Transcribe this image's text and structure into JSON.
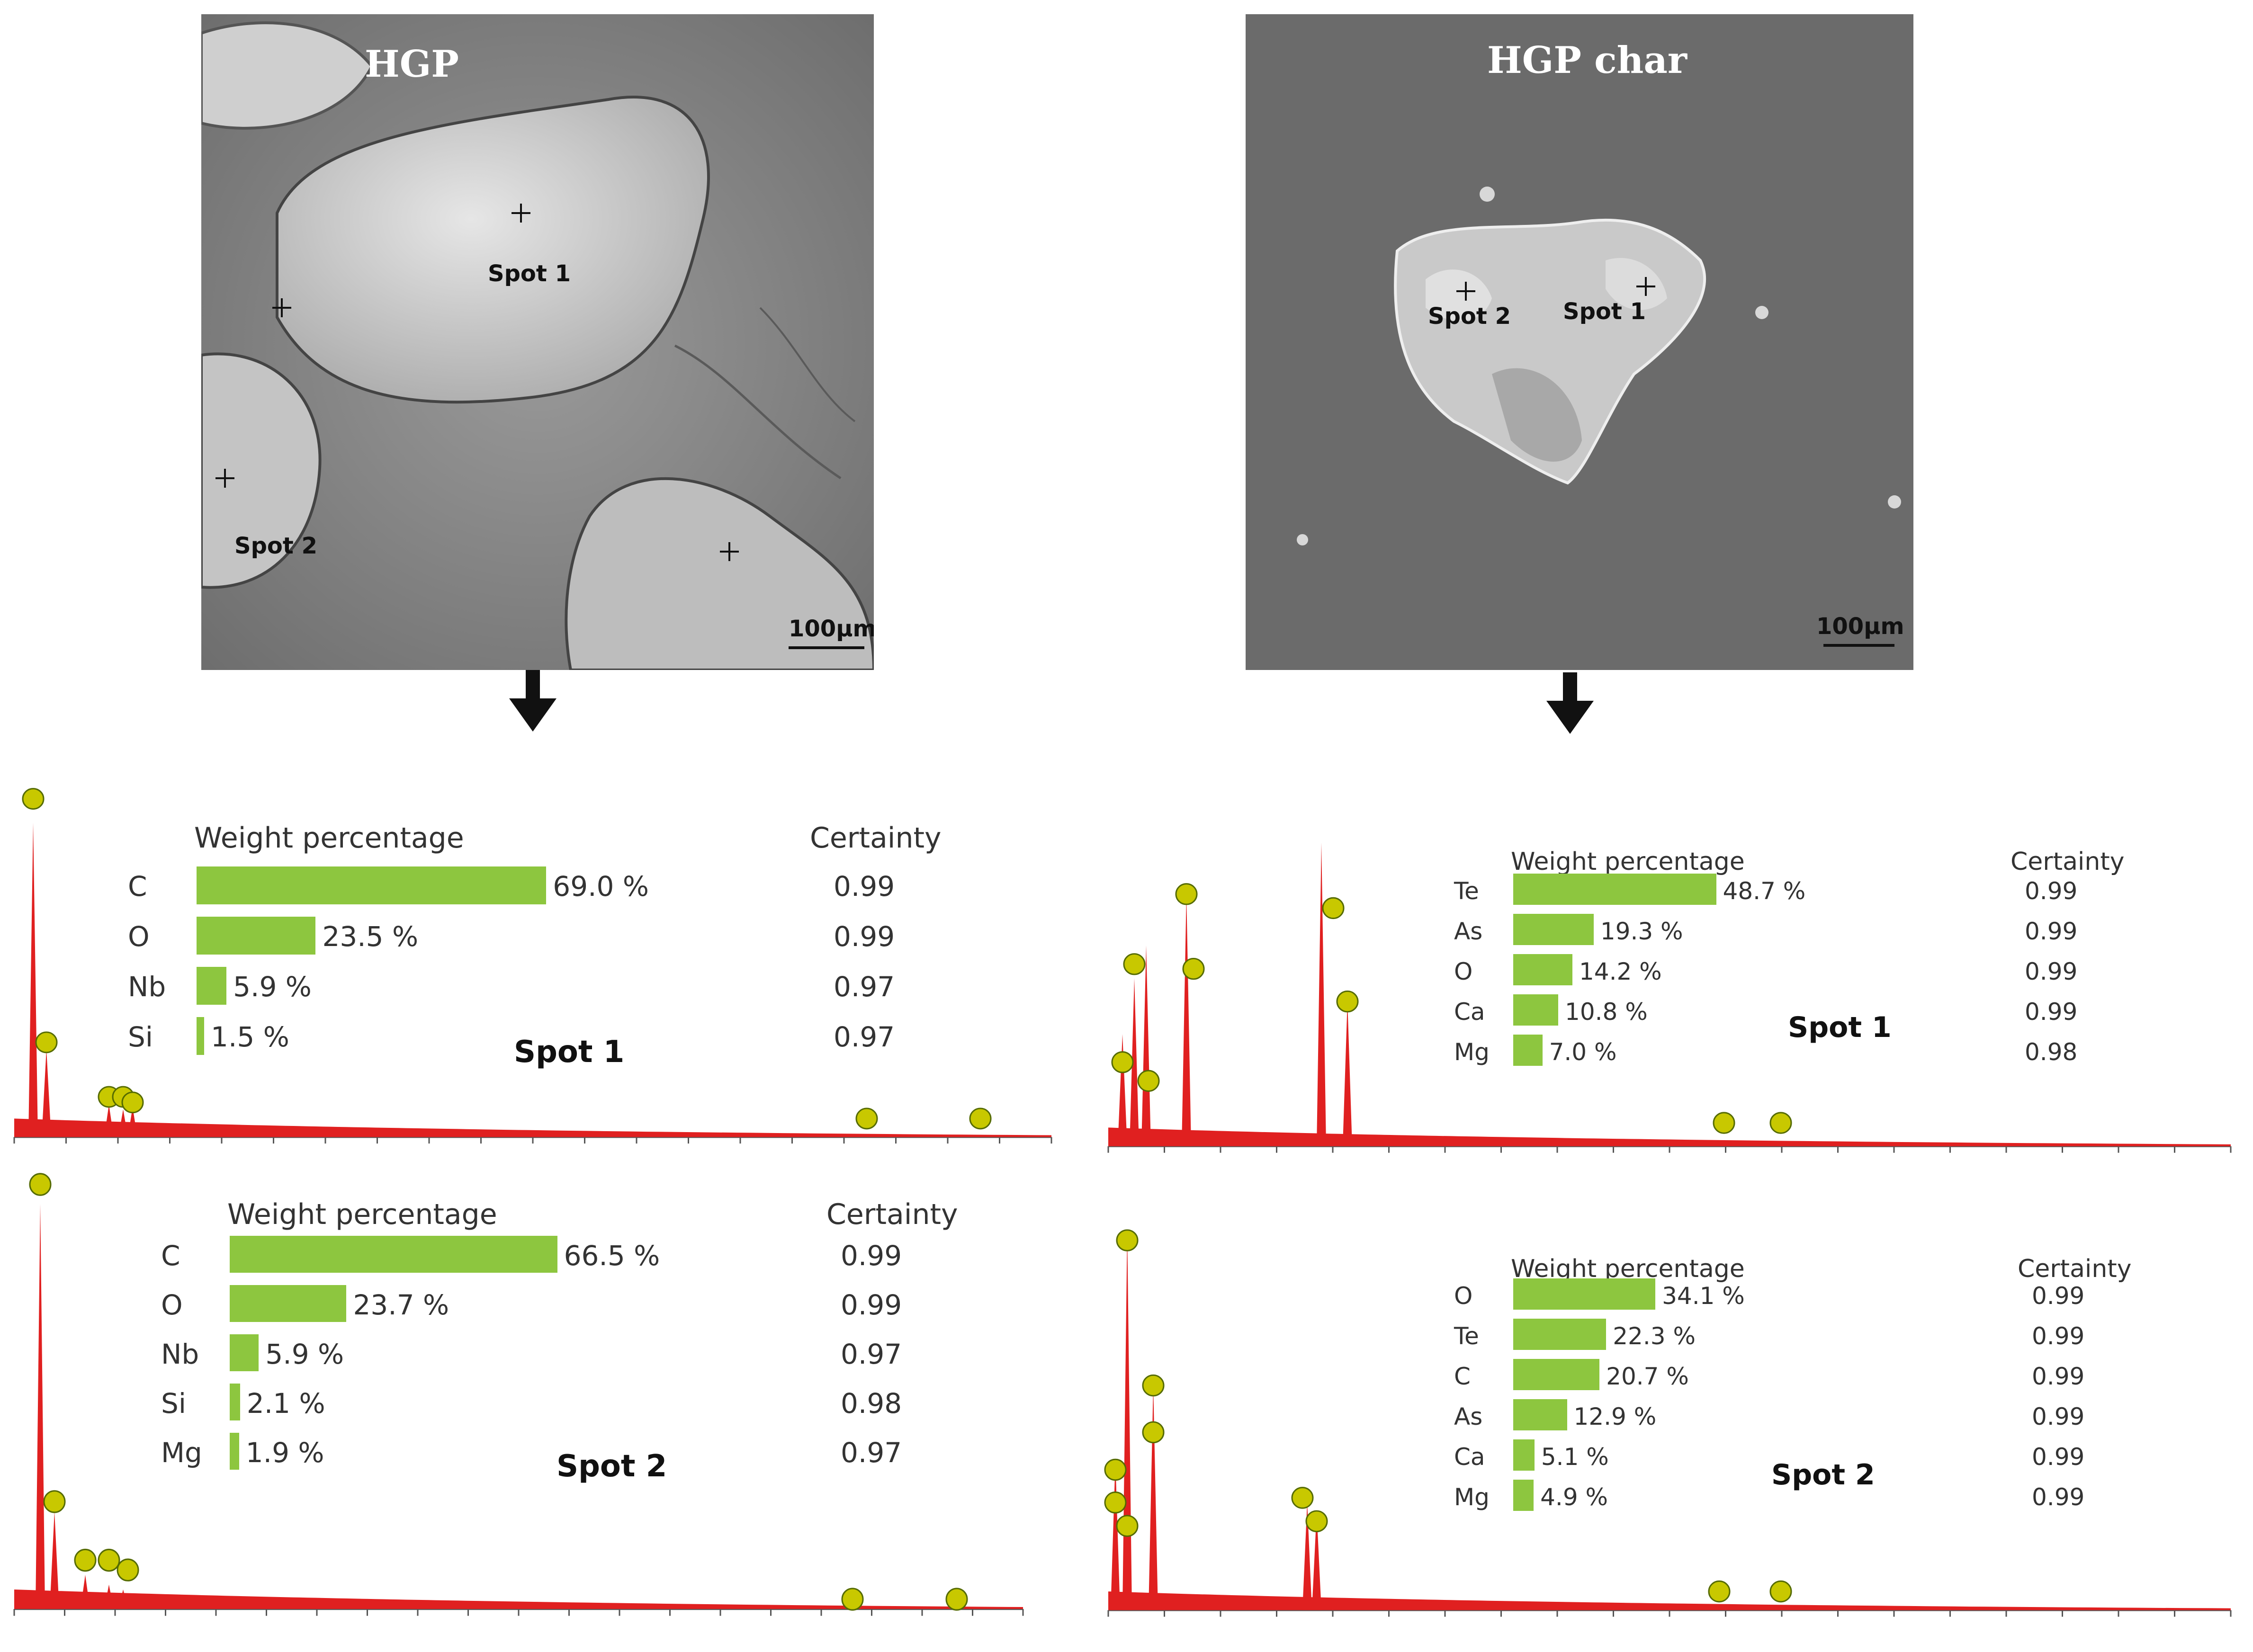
{
  "sem_images": [
    {
      "title": "HGP",
      "labels": [
        "Spot 1",
        "Spot 2"
      ],
      "scalebar": "100μm"
    },
    {
      "title": "HGP char",
      "labels": [
        "Spot 2",
        "Spot 1"
      ],
      "scalebar": "100μm"
    }
  ],
  "colors": {
    "bar": "#8dc63f",
    "spectrum": "#e02020",
    "peak_marker": "#c8c800"
  },
  "icons": {
    "arrow": "arrow-down-icon",
    "crosshair": "crosshair-icon",
    "peak": "peak-marker-icon"
  },
  "eds_panels": [
    {
      "spot": "Spot 1",
      "header_weight": "Weight percentage",
      "header_certainty": "Certainty",
      "rows": [
        {
          "element": "C",
          "percent": 69.0,
          "label": "69.0 %",
          "certainty": "0.99"
        },
        {
          "element": "O",
          "percent": 23.5,
          "label": "23.5 %",
          "certainty": "0.99"
        },
        {
          "element": "Nb",
          "percent": 5.9,
          "label": "5.9 %",
          "certainty": "0.97"
        },
        {
          "element": "Si",
          "percent": 1.5,
          "label": "1.5 %",
          "certainty": "0.97"
        }
      ]
    },
    {
      "spot": "Spot 2",
      "header_weight": "Weight percentage",
      "header_certainty": "Certainty",
      "rows": [
        {
          "element": "C",
          "percent": 66.5,
          "label": "66.5 %",
          "certainty": "0.99"
        },
        {
          "element": "O",
          "percent": 23.7,
          "label": "23.7 %",
          "certainty": "0.99"
        },
        {
          "element": "Nb",
          "percent": 5.9,
          "label": "5.9 %",
          "certainty": "0.97"
        },
        {
          "element": "Si",
          "percent": 2.1,
          "label": "2.1 %",
          "certainty": "0.98"
        },
        {
          "element": "Mg",
          "percent": 1.9,
          "label": "1.9 %",
          "certainty": "0.97"
        }
      ]
    },
    {
      "spot": "Spot 1",
      "header_weight": "Weight percentage",
      "header_certainty": "Certainty",
      "rows": [
        {
          "element": "Te",
          "percent": 48.7,
          "label": "48.7 %",
          "certainty": "0.99"
        },
        {
          "element": "As",
          "percent": 19.3,
          "label": "19.3 %",
          "certainty": "0.99"
        },
        {
          "element": "O",
          "percent": 14.2,
          "label": "14.2 %",
          "certainty": "0.99"
        },
        {
          "element": "Ca",
          "percent": 10.8,
          "label": "10.8 %",
          "certainty": "0.99"
        },
        {
          "element": "Mg",
          "percent": 7.0,
          "label": "7.0 %",
          "certainty": "0.98"
        }
      ]
    },
    {
      "spot": "Spot 2",
      "header_weight": "Weight percentage",
      "header_certainty": "Certainty",
      "rows": [
        {
          "element": "O",
          "percent": 34.1,
          "label": "34.1 %",
          "certainty": "0.99"
        },
        {
          "element": "Te",
          "percent": 22.3,
          "label": "22.3 %",
          "certainty": "0.99"
        },
        {
          "element": "C",
          "percent": 20.7,
          "label": "20.7 %",
          "certainty": "0.99"
        },
        {
          "element": "As",
          "percent": 12.9,
          "label": "12.9 %",
          "certainty": "0.99"
        },
        {
          "element": "Ca",
          "percent": 5.1,
          "label": "5.1 %",
          "certainty": "0.99"
        },
        {
          "element": "Mg",
          "percent": 4.9,
          "label": "4.9 %",
          "certainty": "0.99"
        }
      ]
    }
  ]
}
